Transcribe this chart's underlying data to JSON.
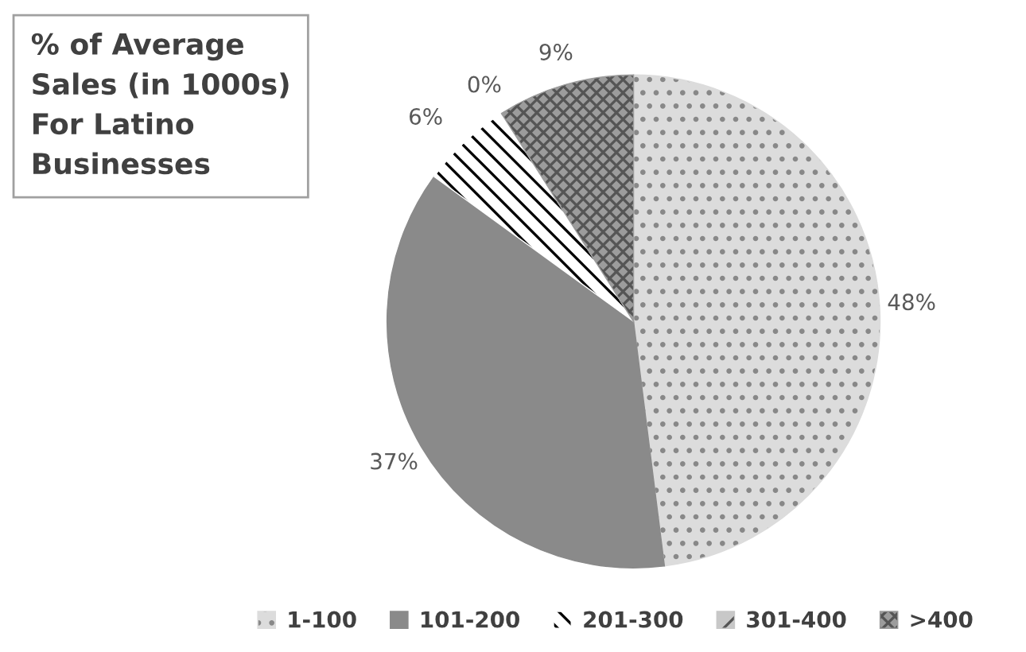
{
  "chart_data": {
    "type": "pie",
    "title": "% of Average\nSales (in 1000s)\nFor Latino\nBusinesses",
    "categories": [
      "1-100",
      "101-200",
      "201-300",
      "301-400",
      ">400"
    ],
    "values": [
      48,
      37,
      6,
      0,
      9
    ],
    "value_labels": [
      "48%",
      "37%",
      "6%",
      "0%",
      "9%"
    ],
    "colors": [
      "#dcdcdc",
      "#8a8a8a",
      "#ffffff",
      "#c8c8c8",
      "#9c9c9c"
    ],
    "legend": "bottom"
  }
}
